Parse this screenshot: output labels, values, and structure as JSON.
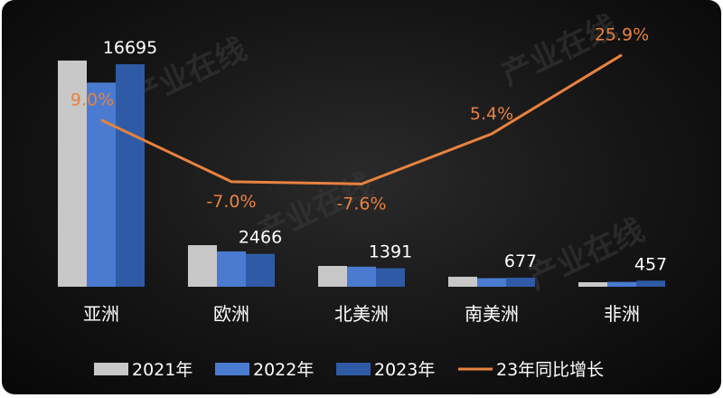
{
  "chart_data": {
    "type": "bar",
    "categories": [
      "亚洲",
      "欧洲",
      "北美洲",
      "南美洲",
      "非洲"
    ],
    "series": [
      {
        "name": "2021年",
        "type": "bar",
        "color": "#c8c8c8",
        "values": [
          16970,
          3120,
          1560,
          750,
          340
        ]
      },
      {
        "name": "2022年",
        "type": "bar",
        "color": "#4a7bd1",
        "values": [
          15317,
          2652,
          1505,
          642,
          363
        ]
      },
      {
        "name": "2023年",
        "type": "bar",
        "color": "#2f5aa6",
        "values": [
          16695,
          2466,
          1391,
          677,
          457
        ],
        "data_labels": [
          "16695",
          "2466",
          "1391",
          "677",
          "457"
        ]
      },
      {
        "name": "23年同比增长",
        "type": "line",
        "color": "#e8823f",
        "values": [
          9.0,
          -7.0,
          -7.6,
          5.4,
          25.9
        ],
        "data_labels": [
          "9.0%",
          "-7.0%",
          "-7.6%",
          "5.4%",
          "25.9%"
        ],
        "axis": "secondary"
      }
    ],
    "legend": "bottom",
    "grid": false,
    "background": "#111111",
    "watermark": "产业在线 ChinaIOL.com"
  }
}
